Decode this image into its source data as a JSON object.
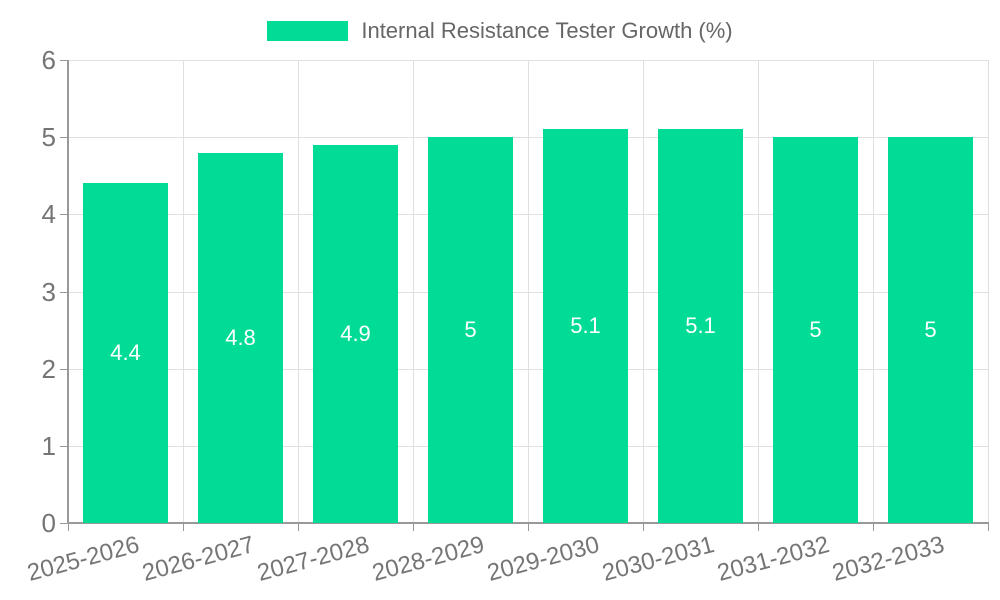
{
  "chart_data": {
    "type": "bar",
    "title": "Internal Resistance Tester Growth (%)",
    "categories": [
      "2025-2026",
      "2026-2027",
      "2027-2028",
      "2028-2029",
      "2029-2030",
      "2030-2031",
      "2031-2032",
      "2032-2033"
    ],
    "values": [
      4.4,
      4.8,
      4.9,
      5,
      5.1,
      5.1,
      5,
      5
    ],
    "value_labels": [
      "4.4",
      "4.8",
      "4.9",
      "5",
      "5.1",
      "5.1",
      "5",
      "5"
    ],
    "xlabel": "",
    "ylabel": "",
    "ylim": [
      0,
      6
    ],
    "y_ticks": [
      "0",
      "1",
      "2",
      "3",
      "4",
      "5",
      "6"
    ],
    "grid": true,
    "legend_position": "top-center",
    "x_label_rotation_deg": -15
  },
  "colors": {
    "bar": "#00DC96",
    "grid_line": "#E0E0E0",
    "axis_line": "#999999",
    "tick_label": "#757575",
    "title_text": "#666666",
    "value_label": "#FFFFFF",
    "background": "#FFFFFF"
  }
}
